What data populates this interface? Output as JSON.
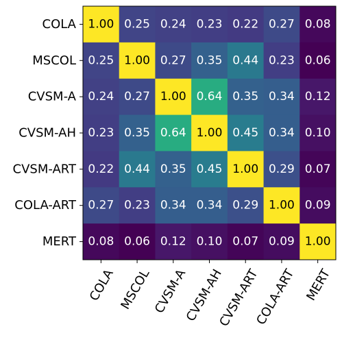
{
  "chart_data": {
    "type": "heatmap",
    "title": "",
    "xlabel": "",
    "ylabel": "",
    "row_labels": [
      "COLA",
      "MSCOL",
      "CVSM-A",
      "CVSM-AH",
      "CVSM-ART",
      "COLA-ART",
      "MERT"
    ],
    "col_labels": [
      "COLA",
      "MSCOL",
      "CVSM-A",
      "CVSM-AH",
      "CVSM-ART",
      "COLA-ART",
      "MERT"
    ],
    "values": [
      [
        1.0,
        0.25,
        0.24,
        0.23,
        0.22,
        0.27,
        0.08
      ],
      [
        0.25,
        1.0,
        0.27,
        0.35,
        0.44,
        0.23,
        0.06
      ],
      [
        0.24,
        0.27,
        1.0,
        0.64,
        0.35,
        0.34,
        0.12
      ],
      [
        0.23,
        0.35,
        0.64,
        1.0,
        0.45,
        0.34,
        0.1
      ],
      [
        0.22,
        0.44,
        0.35,
        0.45,
        1.0,
        0.29,
        0.07
      ],
      [
        0.27,
        0.23,
        0.34,
        0.34,
        0.29,
        1.0,
        0.09
      ],
      [
        0.08,
        0.06,
        0.12,
        0.1,
        0.07,
        0.09,
        1.0
      ]
    ],
    "colormap": "viridis",
    "colorbar": false,
    "grid": false,
    "value_format": "2 decimals",
    "annotation_colors": {
      "light_cells": "#000000",
      "dark_cells": "#ffffff"
    }
  }
}
